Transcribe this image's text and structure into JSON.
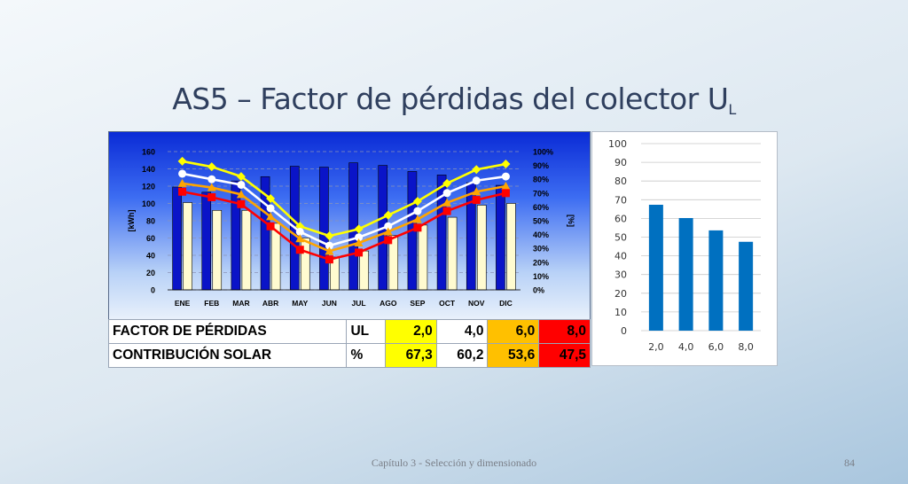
{
  "slide": {
    "title_main": "AS5 – Factor de pérdidas del colector U",
    "title_sub": "L",
    "footer": "Capítulo 3 - Selección y dimensionado",
    "page_number": "84"
  },
  "table": {
    "row1_label": "FACTOR DE PÉRDIDAS",
    "row1_unit": "UL",
    "row1_values": [
      "2,0",
      "4,0",
      "6,0",
      "8,0"
    ],
    "row2_label": "CONTRIBUCIÓN SOLAR",
    "row2_unit": "%",
    "row2_values": [
      "67,3",
      "60,2",
      "53,6",
      "47,5"
    ]
  },
  "chart_data": [
    {
      "type": "bar",
      "categories": [
        "ENE",
        "FEB",
        "MAR",
        "ABR",
        "MAY",
        "JUN",
        "JUL",
        "AGO",
        "SEP",
        "OCT",
        "NOV",
        "DIC"
      ],
      "ylabel": "[kWh]",
      "y2label": "[%]",
      "ylim": [
        0,
        160
      ],
      "yticks": [
        "0",
        "20",
        "40",
        "60",
        "80",
        "100",
        "120",
        "140",
        "160"
      ],
      "y2lim": [
        0,
        100
      ],
      "y2ticks": [
        "0%",
        "10%",
        "20%",
        "30%",
        "40%",
        "50%",
        "60%",
        "70%",
        "80%",
        "90%",
        "100%"
      ],
      "grid": true,
      "bar_series": [
        {
          "values": [
            119,
            113,
            126,
            131,
            143,
            142,
            147,
            144,
            137,
            133,
            124,
            121
          ],
          "color": "#0a14c8"
        },
        {
          "values": [
            101,
            92,
            92,
            77,
            60,
            38,
            45,
            63,
            75,
            84,
            98,
            100
          ],
          "color": "#fffbd0"
        }
      ],
      "line_series": [
        {
          "values": [
            93,
            89,
            82,
            66,
            46,
            39,
            44,
            54,
            64,
            77,
            87,
            91
          ],
          "color": "#ffff00",
          "marker": "diamond"
        },
        {
          "values": [
            84,
            80,
            76,
            59,
            42,
            32,
            38,
            46,
            57,
            70,
            79,
            82
          ],
          "color": "#ffffff",
          "marker": "circle"
        },
        {
          "values": [
            77,
            74,
            69,
            53,
            37,
            28,
            34,
            42,
            51,
            63,
            71,
            75
          ],
          "color": "#ffa500",
          "marker": "triangle"
        },
        {
          "values": [
            71,
            67,
            62,
            46,
            29,
            22,
            27,
            36,
            45,
            57,
            65,
            70
          ],
          "color": "#ff0000",
          "marker": "square"
        }
      ]
    },
    {
      "type": "bar",
      "categories": [
        "2,0",
        "4,0",
        "6,0",
        "8,0"
      ],
      "values": [
        67.3,
        60.2,
        53.6,
        47.5
      ],
      "ylim": [
        0,
        100
      ],
      "yticks": [
        "0",
        "10",
        "20",
        "30",
        "40",
        "50",
        "60",
        "70",
        "80",
        "90",
        "100"
      ],
      "grid": true,
      "color": "#0070c0"
    }
  ]
}
